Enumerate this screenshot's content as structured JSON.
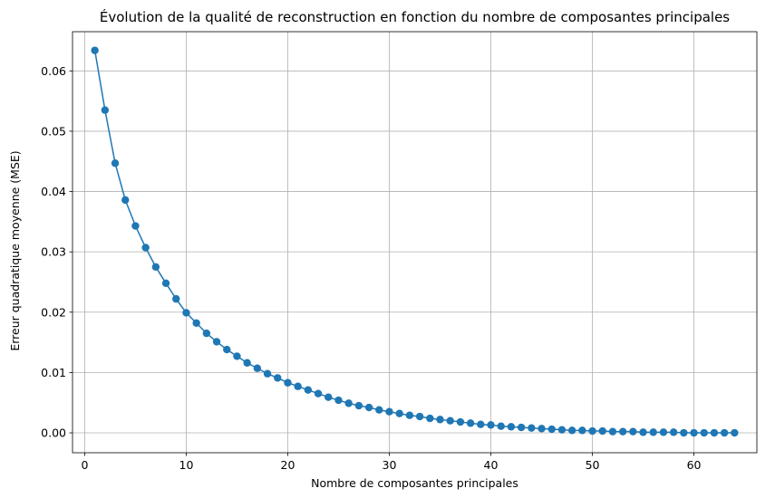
{
  "chart_data": {
    "type": "line",
    "title": "Évolution de la qualité de reconstruction en fonction du nombre de composantes principales",
    "xlabel": "Nombre de composantes principales",
    "ylabel": "Erreur quadratique moyenne (MSE)",
    "xlim": [
      -1.2,
      66.2
    ],
    "ylim": [
      -0.0033,
      0.0665
    ],
    "xticks": [
      0,
      10,
      20,
      30,
      40,
      50,
      60
    ],
    "xtick_labels": [
      "0",
      "10",
      "20",
      "30",
      "40",
      "50",
      "60"
    ],
    "yticks": [
      0.0,
      0.01,
      0.02,
      0.03,
      0.04,
      0.05,
      0.06
    ],
    "ytick_labels": [
      "0.00",
      "0.01",
      "0.02",
      "0.03",
      "0.04",
      "0.05",
      "0.06"
    ],
    "grid": true,
    "marker": "circle",
    "series": [
      {
        "color": "#1f77b4",
        "x": [
          1,
          2,
          3,
          4,
          5,
          6,
          7,
          8,
          9,
          10,
          11,
          12,
          13,
          14,
          15,
          16,
          17,
          18,
          19,
          20,
          21,
          22,
          23,
          24,
          25,
          26,
          27,
          28,
          29,
          30,
          31,
          32,
          33,
          34,
          35,
          36,
          37,
          38,
          39,
          40,
          41,
          42,
          43,
          44,
          45,
          46,
          47,
          48,
          49,
          50,
          51,
          52,
          53,
          54,
          55,
          56,
          57,
          58,
          59,
          60,
          61,
          62,
          63,
          64
        ],
        "y": [
          0.0634,
          0.0535,
          0.0447,
          0.0386,
          0.0343,
          0.0307,
          0.0275,
          0.0248,
          0.0222,
          0.0199,
          0.0182,
          0.0165,
          0.0151,
          0.0138,
          0.0127,
          0.0116,
          0.0107,
          0.0098,
          0.0091,
          0.0083,
          0.0077,
          0.0071,
          0.0065,
          0.0059,
          0.0054,
          0.0049,
          0.0045,
          0.0042,
          0.0038,
          0.0035,
          0.0032,
          0.0029,
          0.0027,
          0.0024,
          0.0022,
          0.002,
          0.0018,
          0.0016,
          0.0014,
          0.0013,
          0.0011,
          0.001,
          0.0009,
          0.0008,
          0.0007,
          0.0006,
          0.0005,
          0.0004,
          0.0004,
          0.0003,
          0.0003,
          0.0002,
          0.0002,
          0.0002,
          0.0001,
          0.0001,
          0.0001,
          0.0001,
          0.0,
          0.0,
          0.0,
          0.0,
          0.0,
          0.0
        ]
      }
    ]
  }
}
